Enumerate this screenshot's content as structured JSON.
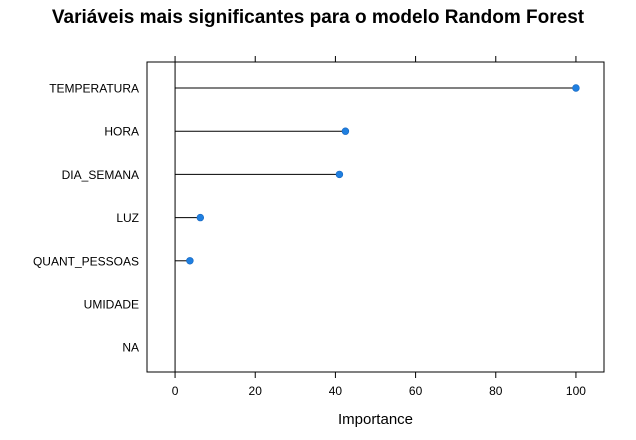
{
  "chart_data": {
    "type": "scatter",
    "subtype": "lollipop",
    "title": "Variáveis mais significantes para o modelo Random Forest",
    "xlabel": "Importance",
    "ylabel": "",
    "categories": [
      "TEMPERATURA",
      "HORA",
      "DIA_SEMANA",
      "LUZ",
      "QUANT_PESSOAS",
      "UMIDADE",
      "NA"
    ],
    "values": [
      100,
      42.5,
      41,
      6.3,
      3.7,
      null,
      null
    ],
    "xlim": [
      -7,
      107
    ],
    "xticks": [
      0,
      20,
      40,
      60,
      80,
      100
    ],
    "reference_line_x": 0,
    "grid": false,
    "legend": "none",
    "point_color": "#1f7fe0"
  }
}
